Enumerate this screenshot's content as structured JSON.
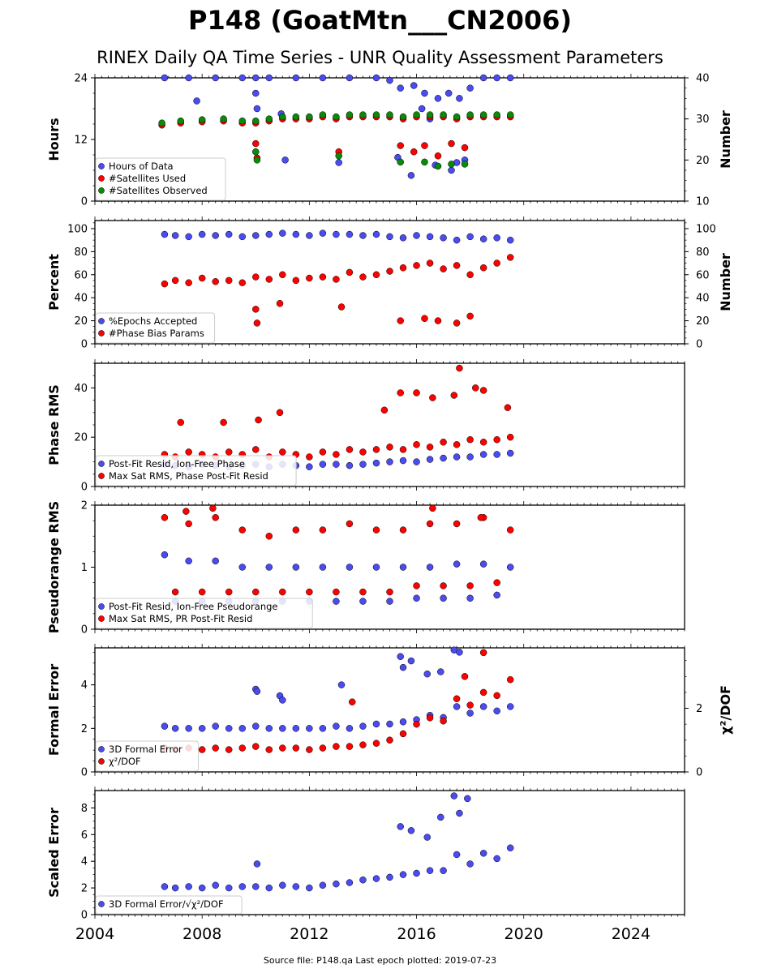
{
  "title": "P148 (GoatMtn___CN2006)",
  "subtitle": "RINEX Daily QA Time Series - UNR Quality Assessment Parameters",
  "footer": "Source file: P148.qa Last epoch plotted: 2019-07-23",
  "colors": {
    "blue": "#4b4bf2",
    "red": "#ff0000",
    "green": "#0a8a0a",
    "edge": "#000000"
  },
  "chart_data": [
    {
      "type": "scatter",
      "id": "hours",
      "ylabel": "Hours",
      "ylim": [
        0,
        24
      ],
      "yticks": [
        0,
        12,
        24
      ],
      "y2label": "Number",
      "y2lim": [
        10,
        40
      ],
      "y2ticks": [
        10,
        20,
        30,
        40
      ],
      "xlim": [
        2004,
        2026
      ],
      "legend_position": "lower-left",
      "series": [
        {
          "name": "Hours of Data",
          "color": "blue",
          "axis": "left",
          "x": [
            2006.6,
            2007.5,
            2008.5,
            2009.5,
            2010.0,
            2010.5,
            2011.5,
            2012.5,
            2013.5,
            2014.5,
            2015.0,
            2015.4,
            2015.9,
            2016.3,
            2016.8,
            2017.2,
            2017.6,
            2018.0,
            2018.5,
            2019.0,
            2019.5,
            2007.8,
            2010.0,
            2010.05,
            2010.95,
            2011.1,
            2013.1,
            2015.3,
            2015.8,
            2016.7,
            2017.3,
            2017.5,
            2017.8,
            2016.2,
            2016.5
          ],
          "y": [
            24,
            24,
            24,
            24,
            24,
            24,
            24,
            24,
            24,
            24,
            23.5,
            22,
            22.5,
            21,
            20,
            21,
            20,
            22,
            24,
            24,
            24,
            19.5,
            21,
            18,
            17,
            8,
            7.5,
            8.5,
            5,
            7,
            6,
            7.5,
            8,
            18,
            16
          ]
        },
        {
          "name": "#Satellites Used",
          "color": "red",
          "axis": "right",
          "x": [
            2006.5,
            2007.2,
            2008.0,
            2008.8,
            2009.5,
            2010.0,
            2010.5,
            2011.0,
            2011.5,
            2012.0,
            2012.5,
            2013.0,
            2013.5,
            2014.0,
            2014.5,
            2015.0,
            2015.5,
            2016.0,
            2016.5,
            2017.0,
            2017.5,
            2018.0,
            2018.5,
            2019.0,
            2019.5,
            2010.0,
            2010.05,
            2013.1,
            2015.4,
            2015.9,
            2016.3,
            2016.8,
            2017.3,
            2017.8
          ],
          "y": [
            28.5,
            29,
            29.3,
            29.5,
            29,
            29,
            29.5,
            30,
            30,
            30,
            30.5,
            30,
            30.5,
            30.5,
            30.5,
            30.5,
            30,
            30.5,
            30.5,
            30.5,
            30,
            30.5,
            30.5,
            30.5,
            30.5,
            24,
            20.5,
            22,
            23.5,
            22,
            23.5,
            21,
            24,
            23
          ]
        },
        {
          "name": "#Satellites Observed",
          "color": "green",
          "axis": "right",
          "x": [
            2006.5,
            2007.2,
            2008.0,
            2008.8,
            2009.5,
            2010.0,
            2010.5,
            2011.0,
            2011.5,
            2012.0,
            2012.5,
            2013.0,
            2013.5,
            2014.0,
            2014.5,
            2015.0,
            2015.5,
            2016.0,
            2016.5,
            2017.0,
            2017.5,
            2018.0,
            2018.5,
            2019.0,
            2019.5,
            2010.0,
            2010.05,
            2013.1,
            2015.4,
            2016.3,
            2016.8,
            2017.3,
            2017.8
          ],
          "y": [
            29,
            29.5,
            29.8,
            30,
            29.5,
            29.5,
            30,
            30.5,
            30.5,
            30.5,
            31,
            30.5,
            31,
            31,
            31,
            31,
            30.5,
            31,
            31,
            31,
            30.5,
            31,
            31,
            31,
            31,
            22,
            20,
            21,
            19.5,
            19.5,
            18.5,
            19,
            19
          ]
        }
      ]
    },
    {
      "type": "scatter",
      "id": "percent",
      "ylabel": "Percent",
      "ylim": [
        0,
        107
      ],
      "yticks": [
        0,
        20,
        40,
        60,
        80,
        100
      ],
      "y2label": "Number",
      "y2lim": [
        0,
        107
      ],
      "y2ticks": [
        0,
        20,
        40,
        60,
        80,
        100
      ],
      "xlim": [
        2004,
        2026
      ],
      "legend_position": "lower-left",
      "series": [
        {
          "name": "%Epochs Accepted",
          "color": "blue",
          "axis": "left",
          "x": [
            2006.6,
            2007.0,
            2007.5,
            2008.0,
            2008.5,
            2009.0,
            2009.5,
            2010.0,
            2010.5,
            2011.0,
            2011.5,
            2012.0,
            2012.5,
            2013.0,
            2013.5,
            2014.0,
            2014.5,
            2015.0,
            2015.5,
            2016.0,
            2016.5,
            2017.0,
            2017.5,
            2018.0,
            2018.5,
            2019.0,
            2019.5
          ],
          "y": [
            95,
            94,
            93,
            95,
            94,
            95,
            93,
            94,
            95,
            96,
            95,
            94,
            96,
            95,
            95,
            94,
            95,
            93,
            92,
            94,
            93,
            92,
            90,
            93,
            91,
            92,
            90
          ]
        },
        {
          "name": "#Phase Bias Params",
          "color": "red",
          "axis": "left",
          "x": [
            2006.6,
            2007.0,
            2007.5,
            2008.0,
            2008.5,
            2009.0,
            2009.5,
            2010.0,
            2010.5,
            2011.0,
            2011.5,
            2012.0,
            2012.5,
            2013.0,
            2013.5,
            2014.0,
            2014.5,
            2015.0,
            2015.5,
            2016.0,
            2016.5,
            2017.0,
            2017.5,
            2018.0,
            2018.5,
            2019.0,
            2019.5,
            2010.0,
            2010.05,
            2010.9,
            2013.2,
            2015.4,
            2016.3,
            2016.8,
            2017.5,
            2018.0
          ],
          "y": [
            52,
            55,
            53,
            57,
            54,
            55,
            53,
            58,
            56,
            60,
            55,
            57,
            58,
            56,
            62,
            58,
            60,
            63,
            66,
            68,
            70,
            65,
            68,
            60,
            66,
            70,
            75,
            30,
            18,
            35,
            32,
            20,
            22,
            20,
            18,
            24
          ]
        }
      ]
    },
    {
      "type": "scatter",
      "id": "phase-rms",
      "ylabel": "Phase RMS",
      "ylim": [
        0,
        50
      ],
      "yticks": [
        0,
        20,
        40
      ],
      "xlim": [
        2004,
        2026
      ],
      "legend_position": "lower-left",
      "series": [
        {
          "name": "Post-Fit Resid, Ion-Free Phase",
          "color": "blue",
          "axis": "left",
          "x": [
            2006.6,
            2007.0,
            2007.5,
            2008.0,
            2008.5,
            2009.0,
            2009.5,
            2010.0,
            2010.5,
            2011.0,
            2011.5,
            2012.0,
            2012.5,
            2013.0,
            2013.5,
            2014.0,
            2014.5,
            2015.0,
            2015.5,
            2016.0,
            2016.5,
            2017.0,
            2017.5,
            2018.0,
            2018.5,
            2019.0,
            2019.5
          ],
          "y": [
            9,
            8.5,
            8,
            9,
            8.5,
            8,
            8.5,
            9,
            8,
            9,
            8.5,
            8,
            9,
            9,
            8.5,
            9,
            9.5,
            10,
            10.5,
            10,
            11,
            11.5,
            12,
            12,
            13,
            13,
            13.5
          ]
        },
        {
          "name": "Max Sat RMS, Phase Post-Fit Resid",
          "color": "red",
          "axis": "left",
          "x": [
            2006.6,
            2007.0,
            2007.5,
            2008.0,
            2008.5,
            2009.0,
            2009.5,
            2010.0,
            2010.5,
            2011.0,
            2011.5,
            2012.0,
            2012.5,
            2013.0,
            2013.5,
            2014.0,
            2014.5,
            2015.0,
            2015.5,
            2016.0,
            2016.5,
            2017.0,
            2017.5,
            2018.0,
            2018.5,
            2019.0,
            2019.5,
            2007.2,
            2008.8,
            2010.1,
            2010.9,
            2014.8,
            2015.4,
            2016.0,
            2016.6,
            2017.4,
            2017.6,
            2018.2,
            2018.5,
            2019.4
          ],
          "y": [
            13,
            12,
            14,
            13,
            12,
            14,
            13,
            15,
            12,
            14,
            13,
            12,
            14,
            13,
            15,
            14,
            15,
            16,
            15,
            17,
            16,
            18,
            17,
            19,
            18,
            19,
            20,
            26,
            26,
            27,
            30,
            31,
            38,
            38,
            36,
            37,
            48,
            40,
            39,
            32
          ]
        }
      ]
    },
    {
      "type": "scatter",
      "id": "pseudorange-rms",
      "ylabel": "Pseudorange RMS",
      "ylim": [
        0,
        2
      ],
      "yticks": [
        0,
        1,
        2
      ],
      "xlim": [
        2004,
        2026
      ],
      "legend_position": "lower-left",
      "series": [
        {
          "name": "Post-Fit Resid, Ion-Free Pseudorange",
          "color": "blue",
          "axis": "left",
          "x": [
            2006.6,
            2007.0,
            2007.5,
            2008.0,
            2008.5,
            2009.0,
            2009.5,
            2010.0,
            2010.5,
            2011.0,
            2011.5,
            2012.0,
            2012.5,
            2013.0,
            2013.5,
            2014.0,
            2014.5,
            2015.0,
            2015.5,
            2016.0,
            2016.5,
            2017.0,
            2017.5,
            2018.0,
            2018.5,
            2019.0,
            2019.5
          ],
          "y": [
            1.2,
            0.45,
            1.1,
            0.45,
            1.1,
            0.45,
            1.0,
            0.45,
            1.0,
            0.45,
            1.0,
            0.45,
            1.0,
            0.45,
            1.0,
            0.45,
            1.0,
            0.45,
            1.0,
            0.5,
            1.0,
            0.5,
            1.05,
            0.5,
            1.05,
            0.55,
            1.0
          ]
        },
        {
          "name": "Max Sat RMS, PR Post-Fit Resid",
          "color": "red",
          "axis": "left",
          "x": [
            2006.6,
            2007.0,
            2007.5,
            2008.0,
            2008.5,
            2009.0,
            2009.5,
            2010.0,
            2010.5,
            2011.0,
            2011.5,
            2012.0,
            2012.5,
            2013.0,
            2013.5,
            2014.0,
            2014.5,
            2015.0,
            2015.5,
            2016.0,
            2016.5,
            2017.0,
            2017.5,
            2018.0,
            2018.5,
            2019.0,
            2019.5,
            2007.4,
            2008.4,
            2016.6,
            2018.4
          ],
          "y": [
            1.8,
            0.6,
            1.7,
            0.6,
            1.8,
            0.6,
            1.6,
            0.6,
            1.5,
            0.6,
            1.6,
            0.6,
            1.6,
            0.6,
            1.7,
            0.6,
            1.6,
            0.6,
            1.6,
            0.7,
            1.7,
            0.7,
            1.7,
            0.7,
            1.8,
            0.75,
            1.6,
            1.9,
            1.95,
            1.95,
            1.8
          ]
        }
      ]
    },
    {
      "type": "scatter",
      "id": "formal-error",
      "ylabel": "Formal Error",
      "ylim": [
        0,
        5.7
      ],
      "yticks": [
        0,
        2,
        4
      ],
      "y2label": "χ²/DOF",
      "y2lim": [
        0,
        3.9
      ],
      "y2ticks": [
        0,
        2
      ],
      "xlim": [
        2004,
        2026
      ],
      "legend_position": "lower-left",
      "series": [
        {
          "name": "3D Formal Error",
          "color": "blue",
          "axis": "left",
          "x": [
            2006.6,
            2007.0,
            2007.5,
            2008.0,
            2008.5,
            2009.0,
            2009.5,
            2010.0,
            2010.5,
            2011.0,
            2011.5,
            2012.0,
            2012.5,
            2013.0,
            2013.5,
            2014.0,
            2014.5,
            2015.0,
            2015.5,
            2016.0,
            2016.5,
            2017.0,
            2017.5,
            2018.0,
            2018.5,
            2019.0,
            2019.5,
            2010.0,
            2010.05,
            2010.9,
            2011.0,
            2013.2,
            2015.4,
            2015.5,
            2015.8,
            2016.4,
            2016.9,
            2017.4,
            2017.6
          ],
          "y": [
            2.1,
            2.0,
            2.0,
            2.0,
            2.1,
            2.0,
            2.0,
            2.1,
            2.0,
            2.0,
            2.0,
            2.0,
            2.0,
            2.1,
            2.0,
            2.1,
            2.2,
            2.2,
            2.3,
            2.4,
            2.6,
            2.5,
            3.0,
            2.7,
            3.0,
            2.8,
            3.0,
            3.8,
            3.7,
            3.5,
            3.3,
            4.0,
            5.3,
            4.8,
            5.1,
            4.5,
            4.6,
            5.6,
            5.5
          ]
        },
        {
          "name": "χ²/DOF",
          "color": "red",
          "axis": "right",
          "x": [
            2006.6,
            2007.0,
            2007.5,
            2008.0,
            2008.5,
            2009.0,
            2009.5,
            2010.0,
            2010.5,
            2011.0,
            2011.5,
            2012.0,
            2012.5,
            2013.0,
            2013.5,
            2014.0,
            2014.5,
            2015.0,
            2015.5,
            2016.0,
            2016.5,
            2017.0,
            2017.5,
            2018.0,
            2018.5,
            2019.0,
            2019.5,
            2018.5,
            2017.8,
            2013.6
          ],
          "y": [
            0.75,
            0.7,
            0.75,
            0.7,
            0.75,
            0.7,
            0.75,
            0.8,
            0.7,
            0.75,
            0.75,
            0.7,
            0.75,
            0.8,
            0.8,
            0.85,
            0.9,
            1.0,
            1.2,
            1.5,
            1.7,
            1.6,
            2.3,
            2.1,
            2.5,
            2.4,
            2.9,
            3.75,
            3.0,
            2.2
          ]
        }
      ]
    },
    {
      "type": "scatter",
      "id": "scaled-error",
      "ylabel": "Scaled Error",
      "ylim": [
        0,
        9.3
      ],
      "yticks": [
        0,
        2,
        4,
        6,
        8
      ],
      "xlim": [
        2004,
        2026
      ],
      "xticks": [
        2004,
        2008,
        2012,
        2016,
        2020,
        2024
      ],
      "legend_position": "lower-left",
      "series": [
        {
          "name": "3D Formal Error/√χ²/DOF",
          "color": "blue",
          "axis": "left",
          "x": [
            2006.6,
            2007.0,
            2007.5,
            2008.0,
            2008.5,
            2009.0,
            2009.5,
            2010.0,
            2010.5,
            2011.0,
            2011.5,
            2012.0,
            2012.5,
            2013.0,
            2013.5,
            2014.0,
            2014.5,
            2015.0,
            2015.5,
            2016.0,
            2016.5,
            2017.0,
            2017.5,
            2018.0,
            2018.5,
            2019.0,
            2019.5,
            2010.05,
            2015.4,
            2015.8,
            2016.4,
            2016.9,
            2017.4,
            2017.6,
            2017.9
          ],
          "y": [
            2.1,
            2.0,
            2.1,
            2.0,
            2.2,
            2.0,
            2.1,
            2.1,
            2.0,
            2.2,
            2.1,
            2.0,
            2.2,
            2.3,
            2.4,
            2.6,
            2.7,
            2.8,
            3.0,
            3.1,
            3.3,
            3.3,
            4.5,
            3.8,
            4.6,
            4.2,
            5.0,
            3.8,
            6.6,
            6.3,
            5.8,
            7.3,
            8.9,
            7.6,
            8.7
          ]
        }
      ]
    }
  ]
}
